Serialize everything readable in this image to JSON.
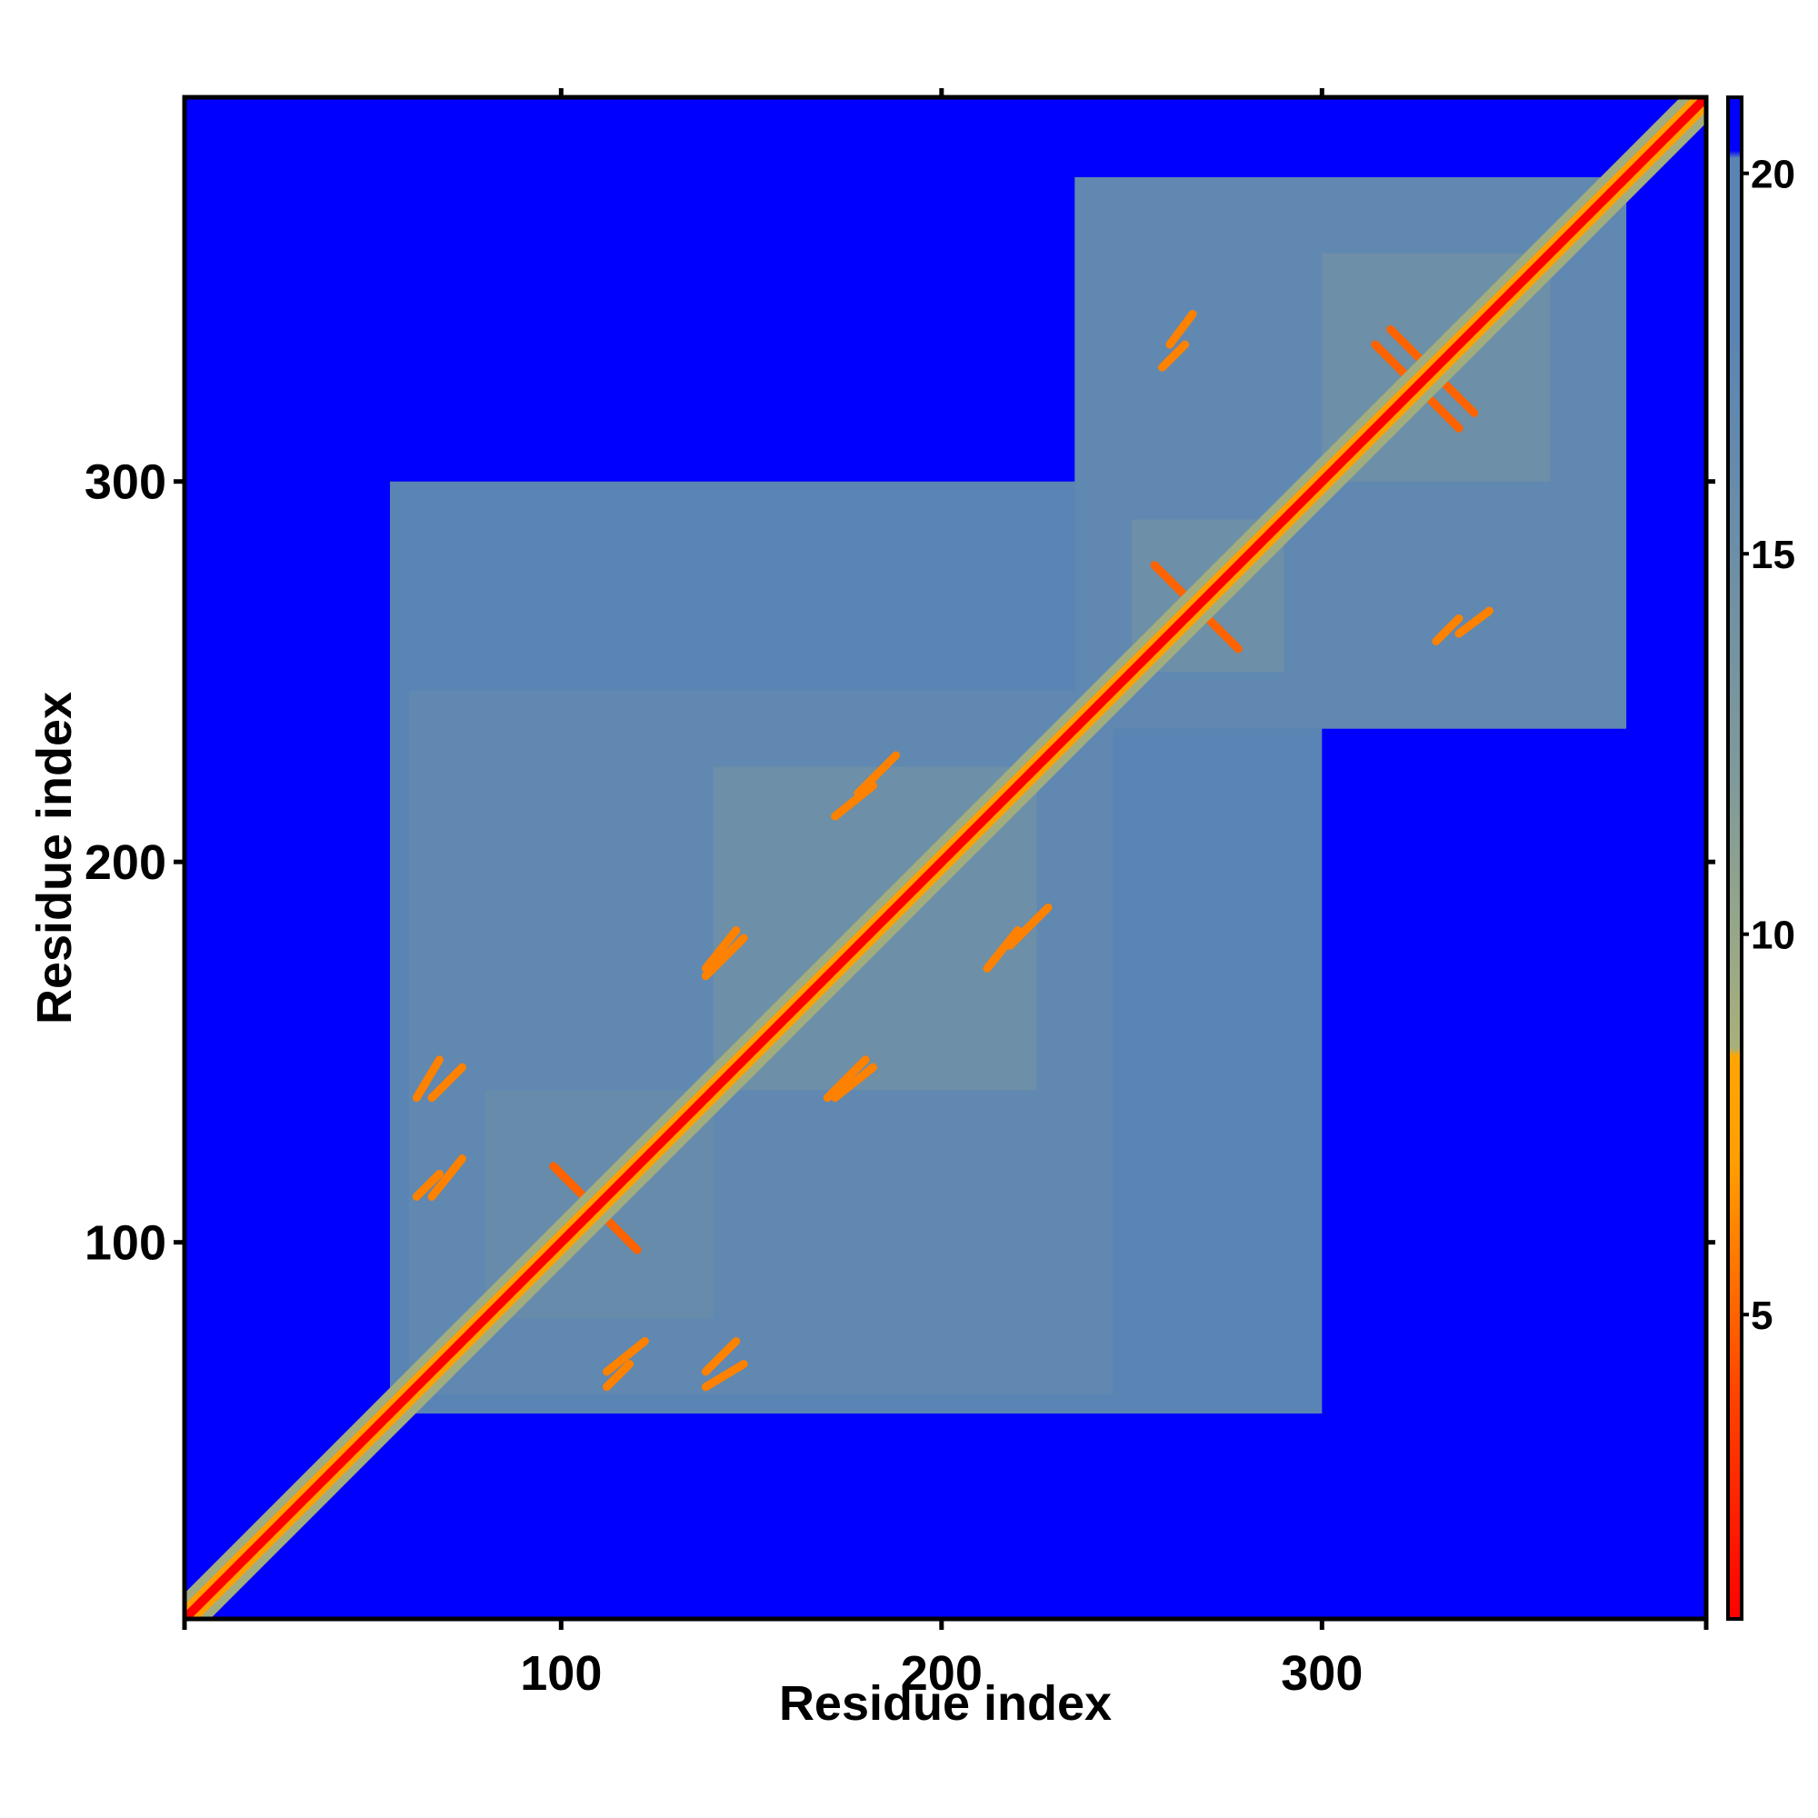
{
  "chart_data": {
    "type": "heatmap",
    "title": "",
    "xlabel": "Residue index",
    "ylabel": "Residue index",
    "xlim": [
      1,
      401
    ],
    "ylim": [
      1,
      401
    ],
    "x_ticks": [
      100,
      200,
      300
    ],
    "y_ticks": [
      100,
      200,
      300
    ],
    "x_tick_labels": [
      "100",
      "200",
      "300"
    ],
    "y_tick_labels": [
      "100",
      "200",
      "300"
    ],
    "colorbar": {
      "range": [
        1,
        21
      ],
      "ticks": [
        5,
        10,
        15,
        20
      ],
      "tick_labels": [
        "5",
        "10",
        "15",
        "20"
      ],
      "stops": [
        {
          "value": 1,
          "color": "#ff0000"
        },
        {
          "value": 4,
          "color": "#ff4500"
        },
        {
          "value": 7,
          "color": "#ff9f00"
        },
        {
          "value": 8.4,
          "color": "#ffa500"
        },
        {
          "value": 8.5,
          "color": "#a8b07a"
        },
        {
          "value": 12,
          "color": "#7f9a9a"
        },
        {
          "value": 18,
          "color": "#5a84b4"
        },
        {
          "value": 20.2,
          "color": "#5a84b4"
        },
        {
          "value": 20.3,
          "color": "#0000ff"
        },
        {
          "value": 21,
          "color": "#0000ff"
        }
      ]
    },
    "colors": {
      "background": "#0000ff",
      "far": "#5a84b4",
      "medium": "#a8b07a",
      "near": "#ffa500",
      "contact": "#ff0000"
    },
    "domains": [
      {
        "start": 1,
        "end": 401,
        "value": 21
      },
      {
        "start": 55,
        "end": 300,
        "value": 18
      },
      {
        "start": 60,
        "end": 245,
        "value": 17
      },
      {
        "start": 235,
        "end": 380,
        "value": 17
      },
      {
        "start": 80,
        "end": 140,
        "value": 16
      },
      {
        "start": 140,
        "end": 225,
        "value": 15
      },
      {
        "start": 250,
        "end": 290,
        "value": 15
      },
      {
        "start": 300,
        "end": 360,
        "value": 15
      }
    ],
    "contact_features": [
      {
        "x": [
          98,
          120
        ],
        "y": [
          120,
          98
        ],
        "value": 5,
        "kind": "antiparallel"
      },
      {
        "x": [
          256,
          278
        ],
        "y": [
          278,
          256
        ],
        "value": 5,
        "kind": "antiparallel"
      },
      {
        "x": [
          314,
          336
        ],
        "y": [
          336,
          314
        ],
        "value": 5,
        "kind": "antiparallel"
      },
      {
        "x": [
          340,
          328
        ],
        "y": [
          318,
          330
        ],
        "value": 5,
        "kind": "antiparallel"
      },
      {
        "x": [
          62,
          68
        ],
        "y": [
          112,
          118
        ],
        "value": 6,
        "kind": "parallel"
      },
      {
        "x": [
          62,
          68
        ],
        "y": [
          138,
          148
        ],
        "value": 6,
        "kind": "parallel"
      },
      {
        "x": [
          112,
          122
        ],
        "y": [
          66,
          74
        ],
        "value": 6,
        "kind": "parallel"
      },
      {
        "x": [
          138,
          146
        ],
        "y": [
          66,
          74
        ],
        "value": 6,
        "kind": "parallel"
      },
      {
        "x": [
          138,
          146
        ],
        "y": [
          172,
          182
        ],
        "value": 6,
        "kind": "parallel"
      },
      {
        "x": [
          170,
          180
        ],
        "y": [
          138,
          148
        ],
        "value": 6,
        "kind": "parallel"
      },
      {
        "x": [
          178,
          188
        ],
        "y": [
          218,
          228
        ],
        "value": 6,
        "kind": "parallel"
      },
      {
        "x": [
          212,
          220
        ],
        "y": [
          172,
          182
        ],
        "value": 6,
        "kind": "parallel"
      },
      {
        "x": [
          258,
          264
        ],
        "y": [
          330,
          336
        ],
        "value": 6,
        "kind": "parallel"
      },
      {
        "x": [
          336,
          344
        ],
        "y": [
          260,
          266
        ],
        "value": 6,
        "kind": "parallel"
      }
    ]
  }
}
